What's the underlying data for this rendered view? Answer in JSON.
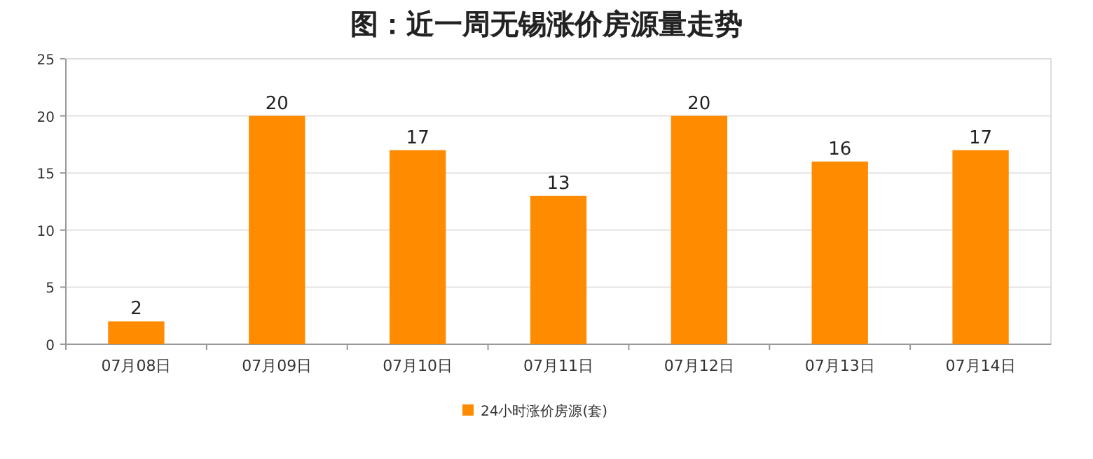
{
  "chart_data": {
    "type": "bar",
    "title": "图：近一周无锡涨价房源量走势",
    "categories": [
      "07月08日",
      "07月09日",
      "07月10日",
      "07月11日",
      "07月12日",
      "07月13日",
      "07月14日"
    ],
    "series": [
      {
        "name": "24小时涨价房源(套)",
        "color": "#ff8c00",
        "values": [
          2,
          20,
          17,
          13,
          20,
          16,
          17
        ]
      }
    ],
    "ylim": [
      0,
      25
    ],
    "yticks": [
      0,
      5,
      10,
      15,
      20,
      25
    ],
    "grid": "y",
    "legend": "bottom",
    "data_labels": true
  }
}
